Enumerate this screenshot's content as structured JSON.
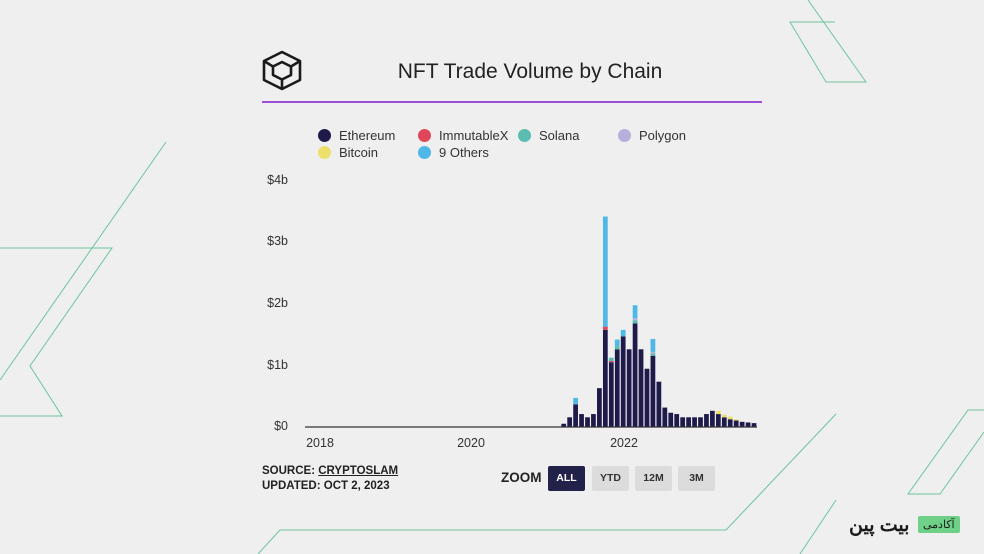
{
  "header": {
    "title": "NFT Trade Volume by Chain",
    "logo_icon": "cube-logo-icon",
    "rule_color": "#9b4fd8"
  },
  "legend": [
    {
      "label": "Ethereum",
      "color": "#1e1b4b"
    },
    {
      "label": "ImmutableX",
      "color": "#e0465a"
    },
    {
      "label": "Solana",
      "color": "#5bbcb0"
    },
    {
      "label": "Polygon",
      "color": "#b7aedc"
    },
    {
      "label": "Bitcoin",
      "color": "#ece06a"
    },
    {
      "label": "9 Others",
      "color": "#4fb8e6"
    }
  ],
  "chart_data": {
    "type": "bar",
    "title": "NFT Trade Volume by Chain",
    "xlabel": "",
    "ylabel": "",
    "y_ticks": [
      "$0",
      "$1b",
      "$2b",
      "$3b",
      "$4b"
    ],
    "x_ticks": [
      "2018",
      "2020",
      "2022"
    ],
    "ylim": [
      0,
      4
    ],
    "y_unit": "billion USD",
    "x_range": [
      "2017-06",
      "2023-10"
    ],
    "grid": false,
    "legend_position": "top",
    "series": [
      {
        "name": "Ethereum",
        "points": [
          [
            "2021-01",
            0.05
          ],
          [
            "2021-02",
            0.15
          ],
          [
            "2021-03",
            0.35
          ],
          [
            "2021-04",
            0.2
          ],
          [
            "2021-05",
            0.15
          ],
          [
            "2021-06",
            0.2
          ],
          [
            "2021-07",
            0.6
          ],
          [
            "2021-08",
            1.5
          ],
          [
            "2021-09",
            1.0
          ],
          [
            "2021-10",
            1.2
          ],
          [
            "2021-11",
            1.4
          ],
          [
            "2021-12",
            1.2
          ],
          [
            "2022-01",
            1.6
          ],
          [
            "2022-02",
            1.2
          ],
          [
            "2022-03",
            0.9
          ],
          [
            "2022-04",
            1.1
          ],
          [
            "2022-05",
            0.7
          ],
          [
            "2022-06",
            0.3
          ],
          [
            "2022-07",
            0.22
          ],
          [
            "2022-08",
            0.2
          ],
          [
            "2022-09",
            0.15
          ],
          [
            "2022-10",
            0.15
          ],
          [
            "2022-11",
            0.15
          ],
          [
            "2022-12",
            0.15
          ],
          [
            "2023-01",
            0.2
          ],
          [
            "2023-02",
            0.25
          ],
          [
            "2023-03",
            0.2
          ],
          [
            "2023-04",
            0.15
          ],
          [
            "2023-05",
            0.12
          ],
          [
            "2023-06",
            0.1
          ],
          [
            "2023-07",
            0.08
          ],
          [
            "2023-08",
            0.07
          ],
          [
            "2023-09",
            0.06
          ]
        ]
      },
      {
        "name": "ImmutableX",
        "points": [
          [
            "2021-08",
            0.05
          ],
          [
            "2021-09",
            0.02
          ]
        ]
      },
      {
        "name": "Solana",
        "points": [
          [
            "2021-09",
            0.05
          ],
          [
            "2021-10",
            0.05
          ],
          [
            "2022-01",
            0.05
          ],
          [
            "2022-04",
            0.04
          ]
        ]
      },
      {
        "name": "Polygon",
        "points": [
          [
            "2022-01",
            0.03
          ],
          [
            "2022-04",
            0.02
          ]
        ]
      },
      {
        "name": "Bitcoin",
        "points": [
          [
            "2023-03",
            0.05
          ],
          [
            "2023-04",
            0.04
          ],
          [
            "2023-05",
            0.04
          ],
          [
            "2023-06",
            0.02
          ]
        ]
      },
      {
        "name": "9 Others",
        "points": [
          [
            "2021-03",
            0.1
          ],
          [
            "2021-08",
            1.7
          ],
          [
            "2021-10",
            0.1
          ],
          [
            "2021-11",
            0.1
          ],
          [
            "2022-01",
            0.2
          ],
          [
            "2022-04",
            0.2
          ]
        ]
      }
    ]
  },
  "footer": {
    "source_prefix": "SOURCE: ",
    "source_link": "CRYPTOSLAM",
    "updated": "UPDATED: OCT 2, 2023",
    "zoom_label": "ZOOM",
    "zoom_buttons": [
      "ALL",
      "YTD",
      "12M",
      "3M"
    ],
    "zoom_active": "ALL"
  },
  "brand": {
    "name": "بیت پین",
    "tag": "آکادمی",
    "tag_color": "#6fd188"
  }
}
